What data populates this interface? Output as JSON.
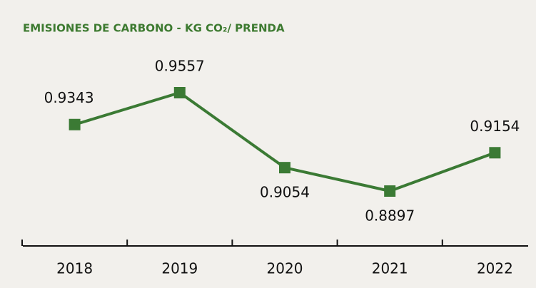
{
  "chart_data": {
    "type": "line",
    "title": "EMISIONES DE CARBONO - KG CO₂/ PRENDA",
    "categories": [
      "2018",
      "2019",
      "2020",
      "2021",
      "2022"
    ],
    "series": [
      {
        "color": "#3b7a34",
        "values": [
          0.9343,
          0.9557,
          0.9054,
          0.8897,
          0.9154
        ]
      }
    ]
  }
}
